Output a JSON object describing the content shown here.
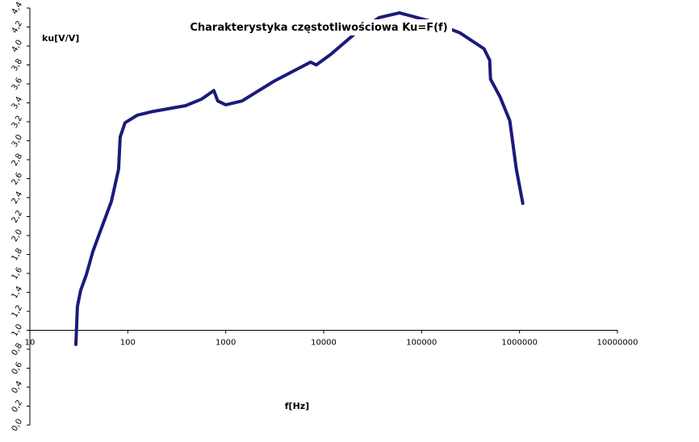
{
  "chart_data": {
    "type": "line",
    "title": "Charakterystyka częstotliwościowa Ku=F(f)",
    "ylabel": "ku[V/V]",
    "xlabel": "f[Hz]",
    "xscale": "log",
    "x_axis_at": 1.0,
    "color": "#1b1b7a",
    "x": [
      29.5,
      30.6,
      33,
      37.8,
      43.9,
      53,
      68,
      80.5,
      83.6,
      93.7,
      125,
      182,
      389,
      568,
      755,
      830,
      1000,
      1466,
      3133,
      7360,
      8400,
      11750,
      20900,
      36900,
      59300,
      115000,
      245000,
      434000,
      496000,
      505000,
      634000,
      795000,
      927000,
      1080000
    ],
    "values": [
      0.85,
      1.25,
      1.42,
      1.59,
      1.83,
      2.06,
      2.36,
      2.7,
      3.04,
      3.19,
      3.27,
      3.31,
      3.37,
      3.44,
      3.53,
      3.42,
      3.38,
      3.42,
      3.63,
      3.83,
      3.8,
      3.91,
      4.13,
      4.3,
      4.35,
      4.27,
      4.14,
      3.97,
      3.85,
      3.65,
      3.46,
      3.21,
      2.7,
      2.34
    ],
    "xlim": [
      10,
      10000000
    ],
    "xticks": [
      10,
      100,
      1000,
      10000,
      100000,
      1000000,
      10000000
    ],
    "ylim": [
      0,
      4.4
    ],
    "yticks": [
      {
        "value": 0,
        "label": "0,0"
      },
      {
        "value": 0.2,
        "label": "0,2"
      },
      {
        "value": 0.4,
        "label": "0,4"
      },
      {
        "value": 0.6,
        "label": "0,6"
      },
      {
        "value": 0.8,
        "label": "0,8"
      },
      {
        "value": 1.0,
        "label": "1,0"
      },
      {
        "value": 1.2,
        "label": "1,2"
      },
      {
        "value": 1.4,
        "label": "1,4"
      },
      {
        "value": 1.6,
        "label": "1,6"
      },
      {
        "value": 1.8,
        "label": "1,8"
      },
      {
        "value": 2.0,
        "label": "2,0"
      },
      {
        "value": 2.2,
        "label": "2,2"
      },
      {
        "value": 2.4,
        "label": "2,4"
      },
      {
        "value": 2.6,
        "label": "2,6"
      },
      {
        "value": 2.8,
        "label": "2,8"
      },
      {
        "value": 3.0,
        "label": "3,0"
      },
      {
        "value": 3.2,
        "label": "3,2"
      },
      {
        "value": 3.4,
        "label": "3,4"
      },
      {
        "value": 3.6,
        "label": "3,6"
      },
      {
        "value": 3.8,
        "label": "3,8"
      },
      {
        "value": 4.0,
        "label": "4,0"
      },
      {
        "value": 4.2,
        "label": "4,2"
      },
      {
        "value": 4.4,
        "label": "4,4"
      }
    ]
  }
}
